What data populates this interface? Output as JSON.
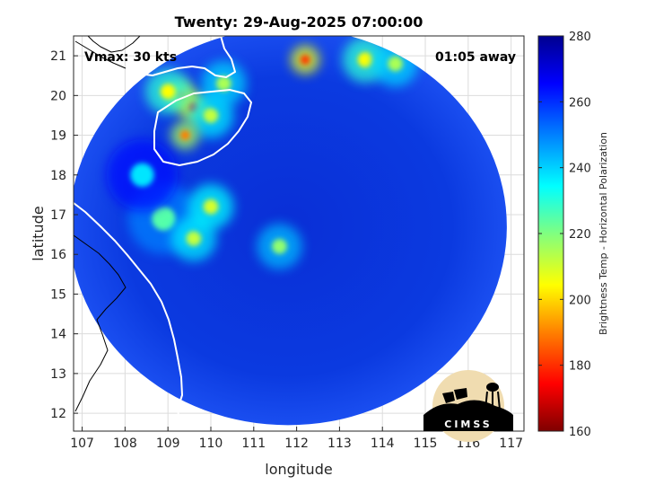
{
  "chart_data": {
    "type": "heatmap",
    "title": "Twenty: 29-Aug-2025 07:00:00",
    "xlabel": "longitude",
    "ylabel": "latitude",
    "xlim": [
      106.8,
      117.3
    ],
    "ylim": [
      11.55,
      21.5
    ],
    "xticks": [
      107,
      108,
      109,
      110,
      111,
      112,
      113,
      114,
      115,
      116,
      117
    ],
    "yticks": [
      12,
      13,
      14,
      15,
      16,
      17,
      18,
      19,
      20,
      21
    ],
    "grid": true,
    "annotations": {
      "vmax": "Vmax: 30 kts",
      "away": "01:05 away"
    },
    "colorbar": {
      "label": "Brightness Temp - Horizontal Polarization",
      "range": [
        160,
        280
      ],
      "ticks": [
        160,
        180,
        200,
        220,
        240,
        260,
        280
      ],
      "colormap": [
        "#7f0000",
        "#ff0000",
        "#ff8000",
        "#ffff00",
        "#80ff80",
        "#00ffff",
        "#0080ff",
        "#0000ff",
        "#00008f"
      ]
    },
    "swath": {
      "center_lon": 111.8,
      "center_lat": 16.7,
      "radius_lon": 5.1,
      "radius_lat": 5.0,
      "background_temp": 262
    },
    "cold_features": [
      {
        "lon": 109.3,
        "lat": 20.0,
        "temp": 185
      },
      {
        "lon": 109.6,
        "lat": 19.7,
        "temp": 180
      },
      {
        "lon": 109.0,
        "lat": 20.1,
        "temp": 205
      },
      {
        "lon": 110.0,
        "lat": 19.5,
        "temp": 212
      },
      {
        "lon": 110.3,
        "lat": 20.3,
        "temp": 215
      },
      {
        "lon": 109.4,
        "lat": 19.0,
        "temp": 190
      },
      {
        "lon": 112.2,
        "lat": 20.9,
        "temp": 182
      },
      {
        "lon": 113.6,
        "lat": 20.9,
        "temp": 205
      },
      {
        "lon": 114.3,
        "lat": 20.8,
        "temp": 215
      },
      {
        "lon": 108.9,
        "lat": 16.9,
        "temp": 225
      },
      {
        "lon": 109.6,
        "lat": 16.4,
        "temp": 212
      },
      {
        "lon": 110.0,
        "lat": 17.2,
        "temp": 210
      },
      {
        "lon": 111.6,
        "lat": 16.2,
        "temp": 218
      },
      {
        "lon": 108.4,
        "lat": 18.0,
        "temp": 238
      }
    ]
  },
  "logo": {
    "text": "CIMSS"
  }
}
